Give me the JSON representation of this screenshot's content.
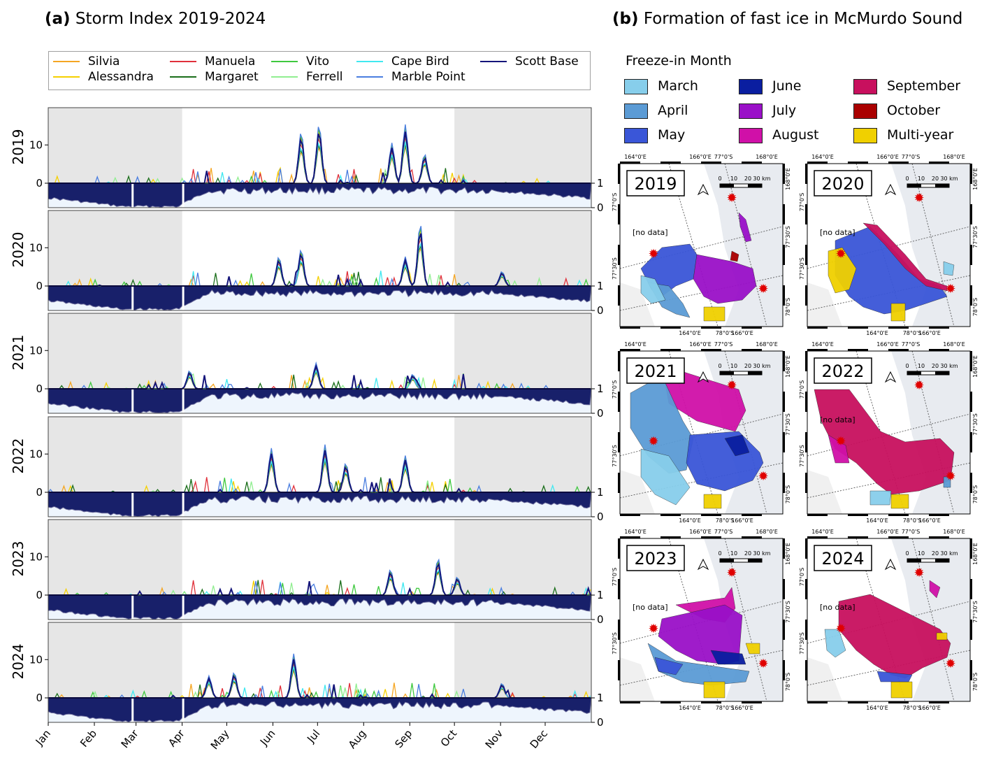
{
  "panel_a": {
    "label": "(a)",
    "title": "Storm Index 2019-2024"
  },
  "panel_b": {
    "label": "(b)",
    "title": "Formation of fast ice in McMurdo Sound"
  },
  "legend": [
    {
      "name": "Silvia",
      "color": "#f5a623"
    },
    {
      "name": "Alessandra",
      "color": "#f5d000"
    },
    {
      "name": "Manuela",
      "color": "#e0303a"
    },
    {
      "name": "Margaret",
      "color": "#1a6e1a"
    },
    {
      "name": "Vito",
      "color": "#3ec83e"
    },
    {
      "name": "Ferrell",
      "color": "#90ee90"
    },
    {
      "name": "Cape Bird",
      "color": "#40e8f0"
    },
    {
      "name": "Marble Point",
      "color": "#4a7ee0"
    },
    {
      "name": "Scott Base",
      "color": "#15157a"
    }
  ],
  "chart_data": {
    "type": "line",
    "x_categories": [
      "Jan",
      "Feb",
      "Mar",
      "Apr",
      "May",
      "Jun",
      "Jul",
      "Aug",
      "Sep",
      "Oct",
      "Nov",
      "Dec"
    ],
    "y_ticks": [
      0,
      10
    ],
    "right_ticks": [
      1,
      0
    ],
    "ylim": [
      -6,
      19
    ],
    "shaded_months": {
      "before": "Apr",
      "after": "Oct"
    },
    "panels": [
      {
        "year": "2019",
        "peaks": [
          {
            "day": 170,
            "v": 14
          },
          {
            "day": 182,
            "v": 16
          },
          {
            "day": 240,
            "v": 16
          },
          {
            "day": 231,
            "v": 11
          },
          {
            "day": 253,
            "v": 8
          }
        ]
      },
      {
        "year": "2020",
        "peaks": [
          {
            "day": 155,
            "v": 8
          },
          {
            "day": 170,
            "v": 10
          },
          {
            "day": 250,
            "v": 17
          },
          {
            "day": 240,
            "v": 8
          },
          {
            "day": 305,
            "v": 4
          }
        ]
      },
      {
        "year": "2021",
        "peaks": [
          {
            "day": 95,
            "v": 5
          },
          {
            "day": 180,
            "v": 7
          },
          {
            "day": 245,
            "v": 4
          }
        ]
      },
      {
        "year": "2022",
        "peaks": [
          {
            "day": 150,
            "v": 12
          },
          {
            "day": 186,
            "v": 13
          },
          {
            "day": 200,
            "v": 8
          },
          {
            "day": 240,
            "v": 10
          }
        ]
      },
      {
        "year": "2023",
        "peaks": [
          {
            "day": 230,
            "v": 7
          },
          {
            "day": 262,
            "v": 10
          },
          {
            "day": 275,
            "v": 5
          }
        ]
      },
      {
        "year": "2024",
        "peaks": [
          {
            "day": 165,
            "v": 12
          },
          {
            "day": 108,
            "v": 6
          },
          {
            "day": 125,
            "v": 7
          },
          {
            "day": 305,
            "v": 4
          }
        ]
      }
    ]
  },
  "map_legend": {
    "title": "Freeze-in Month",
    "items": [
      {
        "name": "March",
        "color": "#87ceeb"
      },
      {
        "name": "April",
        "color": "#5b9bd5"
      },
      {
        "name": "May",
        "color": "#3a56d8"
      },
      {
        "name": "June",
        "color": "#0a1ea0"
      },
      {
        "name": "July",
        "color": "#9a10c8"
      },
      {
        "name": "August",
        "color": "#d010a8"
      },
      {
        "name": "September",
        "color": "#c8105e"
      },
      {
        "name": "October",
        "color": "#aa0000"
      },
      {
        "name": "Multi-year",
        "color": "#f0d000"
      }
    ]
  },
  "maps": [
    {
      "year": "2019",
      "no_data": "[no data]"
    },
    {
      "year": "2020",
      "no_data": "[no data]"
    },
    {
      "year": "2021",
      "no_data": ""
    },
    {
      "year": "2022",
      "no_data": "[no data]"
    },
    {
      "year": "2023",
      "no_data": "[no data]"
    },
    {
      "year": "2024",
      "no_data": "[no data]"
    }
  ],
  "map_axis": {
    "top": [
      "164°0'E",
      "166°0'E",
      "77°0'S",
      "168°0'E"
    ],
    "bottom": [
      "164°0'E",
      "78°0'S",
      "166°0'E"
    ],
    "left": [
      "77°0'S",
      "77°30'S"
    ],
    "right": [
      "168°0'E",
      "77°30'S",
      "78°0'S"
    ],
    "scale": [
      "0",
      "10",
      "20",
      "30 km"
    ]
  }
}
